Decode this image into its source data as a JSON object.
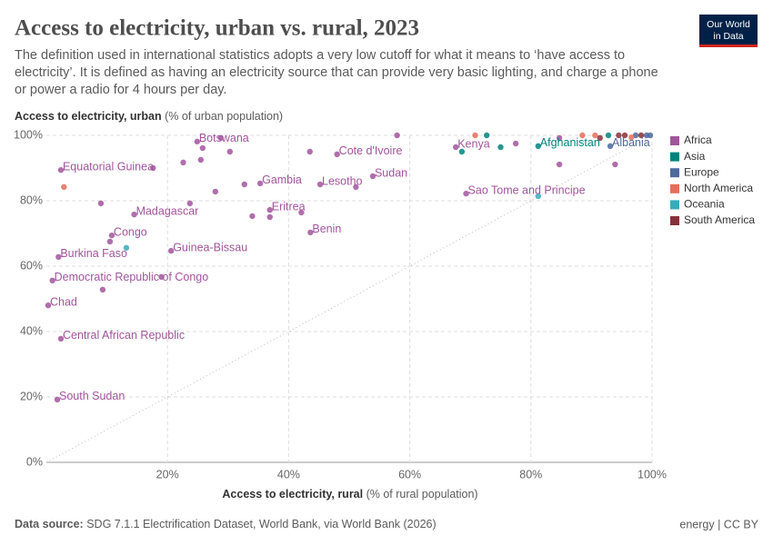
{
  "chart_data": {
    "type": "scatter",
    "title": "Access to electricity, urban vs. rural, 2023",
    "subtitle_lines": [
      "The definition used in international statistics adopts a very low cutoff for what it means to ‘have access to",
      "electricity’. It is defined as having an electricity source that can provide very basic lighting, and charge a phone",
      "or power a radio for 4 hours per day."
    ],
    "y_label": "Access to electricity, urban",
    "y_label_unit": "(% of urban population)",
    "x_label": "Access to electricity, rural",
    "x_label_unit": "(% of rural population)",
    "logo": [
      "Our World",
      "in Data"
    ],
    "source_label": "Data source:",
    "source": "SDG 7.1.1 Electrification Dataset, World Bank, via World Bank (2026)",
    "license": "energy | CC BY",
    "xlim": [
      0,
      100
    ],
    "ylim": [
      0,
      100
    ],
    "xticks": [
      {
        "value": 20,
        "label": "20%"
      },
      {
        "value": 40,
        "label": "40%"
      },
      {
        "value": 60,
        "label": "60%"
      },
      {
        "value": 80,
        "label": "80%"
      },
      {
        "value": 100,
        "label": "100%"
      }
    ],
    "yticks": [
      {
        "value": 0,
        "label": "0%"
      },
      {
        "value": 20,
        "label": "20%"
      },
      {
        "value": 40,
        "label": "40%"
      },
      {
        "value": 60,
        "label": "60%"
      },
      {
        "value": 80,
        "label": "80%"
      },
      {
        "value": 100,
        "label": "100%"
      }
    ],
    "grid": true,
    "legend": "right",
    "series": [
      {
        "name": "Africa",
        "color": "#a2559c",
        "x": [
          24.9,
          2.4,
          67.6,
          48.0,
          53.9,
          35.3,
          45.2,
          69.3,
          14.5,
          36.9,
          43.6,
          10.8,
          20.6,
          2.0,
          1.0,
          0.3,
          2.4,
          1.8,
          28.8,
          57.9,
          22.6,
          25.5,
          30.3,
          43.5,
          25.8,
          17.6,
          9.0,
          23.7,
          27.9,
          32.7,
          51.1,
          42.1,
          34.0,
          36.9,
          10.5,
          9.3,
          19.0,
          77.5,
          84.7,
          93.9,
          84.7
        ],
        "y": [
          98.1,
          89.4,
          96.4,
          94.2,
          87.5,
          85.3,
          85.0,
          82.2,
          75.8,
          77.2,
          70.3,
          69.4,
          64.7,
          62.8,
          55.6,
          48.0,
          37.8,
          19.2,
          99.2,
          100,
          91.7,
          92.5,
          95.0,
          95.0,
          96.1,
          90.0,
          79.2,
          79.2,
          82.8,
          85.0,
          84.2,
          76.4,
          75.3,
          75.0,
          67.5,
          52.8,
          56.7,
          97.5,
          91.1,
          91.1,
          99.2
        ],
        "labels": [
          "Botswana",
          "Equatorial Guinea",
          "Kenya",
          "Cote d'Ivoire",
          "Sudan",
          "Gambia",
          "Lesotho",
          "Sao Tome and Principe",
          "Madagascar",
          "Eritrea",
          "Benin",
          "Congo",
          "Guinea-Bissau",
          "Burkina Faso",
          "Democratic Republic of Congo",
          "Chad",
          "Central African Republic",
          "South Sudan",
          null,
          null,
          null,
          null,
          null,
          null,
          null,
          null,
          null,
          null,
          null,
          null,
          null,
          null,
          null,
          null,
          null,
          null,
          null,
          null,
          null,
          null,
          null
        ]
      },
      {
        "name": "Asia",
        "color": "#00847e",
        "x": [
          81.2,
          72.7,
          68.6,
          75.0,
          92.8
        ],
        "y": [
          96.7,
          100,
          95.0,
          96.4,
          100
        ],
        "labels": [
          "Afghanistan",
          null,
          null,
          null,
          null
        ]
      },
      {
        "name": "Europe",
        "color": "#4c6a9c",
        "x": [
          93.1,
          97.3,
          99.1,
          99.7
        ],
        "y": [
          96.7,
          100,
          100,
          100
        ],
        "labels": [
          "Albania",
          null,
          null,
          null
        ]
      },
      {
        "name": "North America",
        "color": "#e56e5a",
        "x": [
          2.9,
          70.8,
          88.5,
          90.6,
          96.6
        ],
        "y": [
          84.2,
          100,
          100,
          100,
          99.4
        ],
        "labels": [
          null,
          null,
          null,
          null,
          null
        ]
      },
      {
        "name": "Oceania",
        "color": "#38aaba",
        "x": [
          13.2,
          81.2
        ],
        "y": [
          65.6,
          81.4
        ],
        "labels": [
          null,
          null
        ]
      },
      {
        "name": "South America",
        "color": "#883039",
        "x": [
          91.4,
          94.5,
          95.5,
          98.2
        ],
        "y": [
          99.2,
          100,
          100,
          100
        ],
        "labels": [
          null,
          null,
          null,
          null
        ]
      }
    ]
  }
}
